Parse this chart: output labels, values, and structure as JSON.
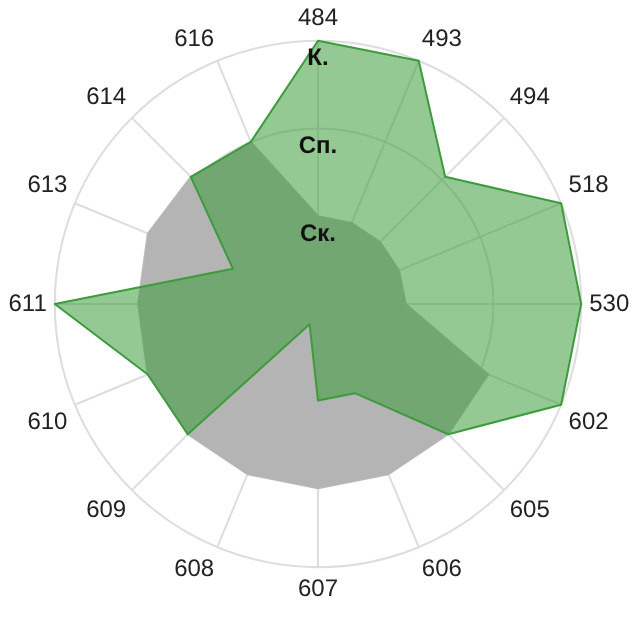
{
  "chart_data": {
    "type": "radar",
    "categories": [
      "484",
      "493",
      "494",
      "518",
      "530",
      "602",
      "605",
      "606",
      "607",
      "608",
      "609",
      "610",
      "611",
      "613",
      "614",
      "616"
    ],
    "ylim": [
      0,
      3
    ],
    "yticks": [
      {
        "value": 1,
        "label": "Ск."
      },
      {
        "value": 2,
        "label": "Сп."
      },
      {
        "value": 3,
        "label": "К."
      }
    ],
    "grid": true,
    "legend": false,
    "marker": "none",
    "series": [
      {
        "color": "#3c9c3c",
        "values": [
          3,
          3,
          2.05,
          3,
          3,
          3,
          2.1,
          1.1,
          1.1,
          0.25,
          2.1,
          2.1,
          3,
          1.05,
          2.05,
          2
        ]
      },
      {
        "color": "#b4b4b4",
        "values": [
          1,
          1,
          1,
          1,
          1,
          2.1,
          2.1,
          2.1,
          2.1,
          2.1,
          2.1,
          2.1,
          2.05,
          2.1,
          2.05,
          2
        ]
      }
    ]
  }
}
